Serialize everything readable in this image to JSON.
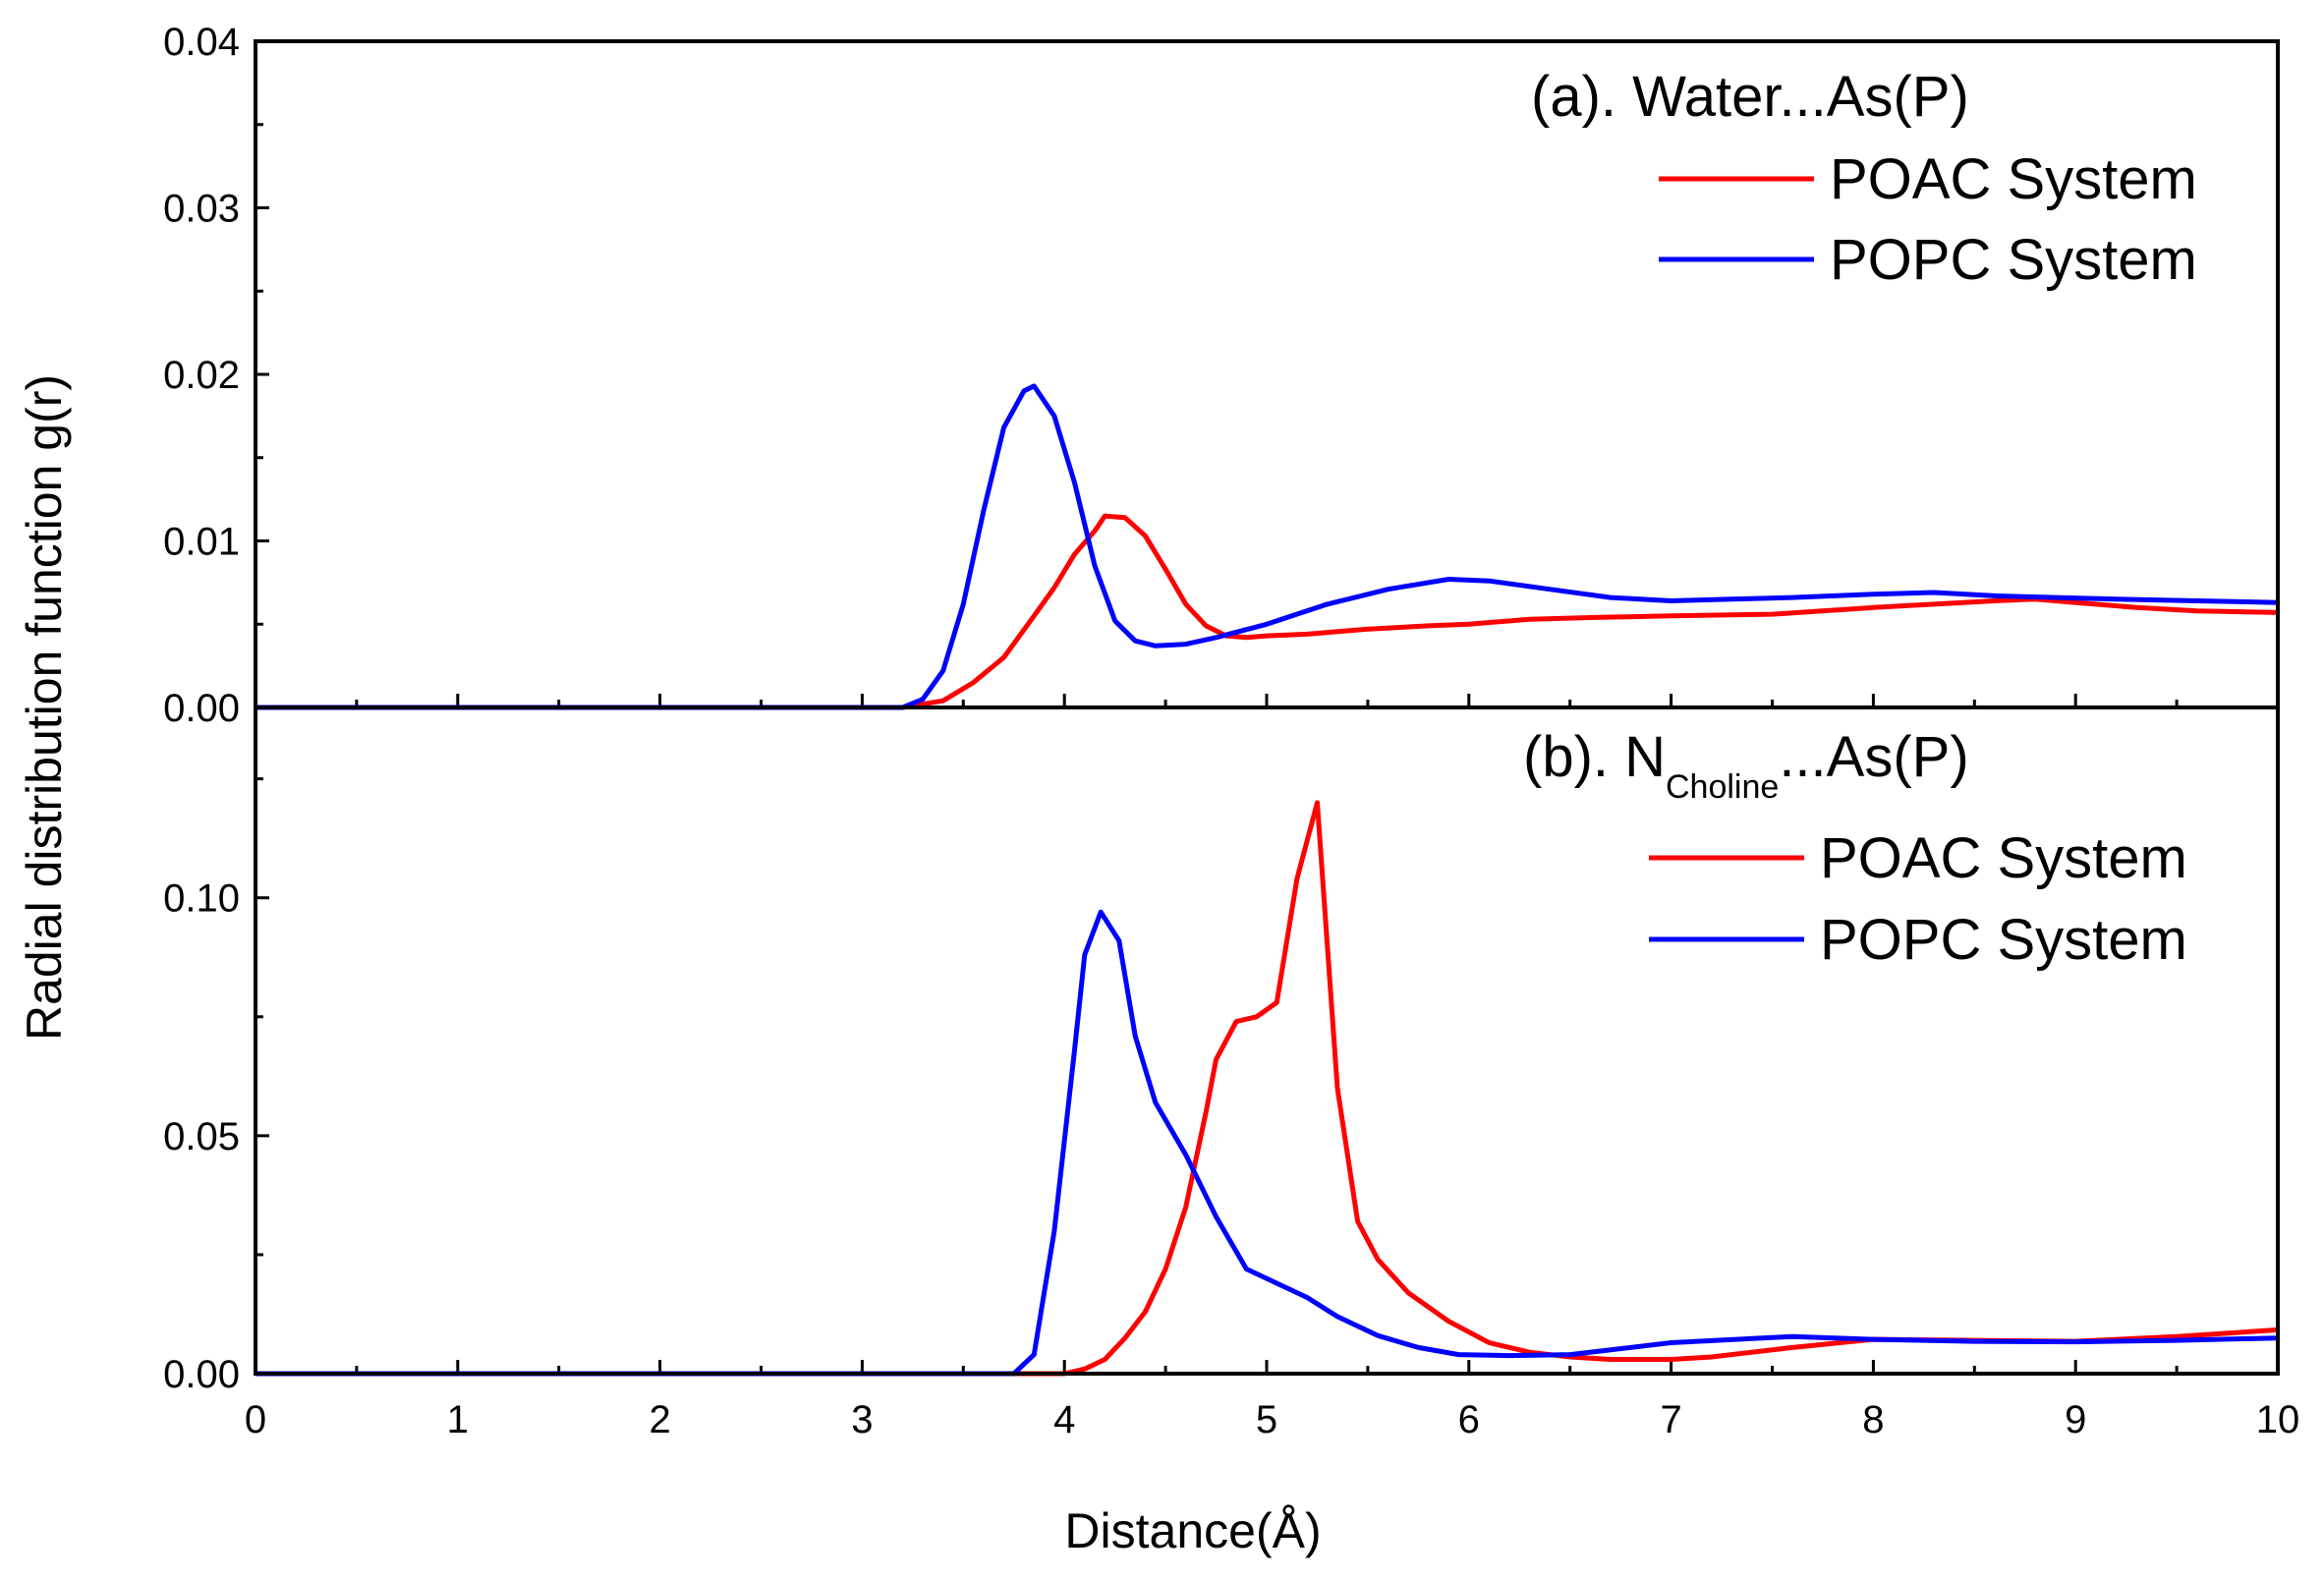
{
  "chart_data": [
    {
      "type": "line",
      "title": "(a). Water...As(P)",
      "xlim": [
        0,
        10
      ],
      "ylim": [
        0,
        0.04
      ],
      "yticks": [
        "0.00",
        "0.01",
        "0.02",
        "0.03",
        "0.04"
      ],
      "series": [
        {
          "name": "POAC System",
          "color": "#ff0000",
          "x": [
            0,
            3.2,
            3.4,
            3.55,
            3.7,
            3.85,
            3.95,
            4.05,
            4.15,
            4.2,
            4.3,
            4.4,
            4.5,
            4.6,
            4.7,
            4.8,
            4.9,
            5.0,
            5.2,
            5.5,
            5.8,
            6.0,
            6.3,
            6.6,
            7.0,
            7.5,
            8.0,
            8.3,
            8.6,
            8.8,
            9.0,
            9.3,
            9.6,
            10.0
          ],
          "y": [
            0,
            0,
            0.0004,
            0.0015,
            0.003,
            0.0055,
            0.0072,
            0.0092,
            0.0106,
            0.0115,
            0.0114,
            0.0103,
            0.0083,
            0.0062,
            0.0049,
            0.0043,
            0.0042,
            0.0043,
            0.0044,
            0.0047,
            0.0049,
            0.005,
            0.0053,
            0.0054,
            0.0055,
            0.0056,
            0.006,
            0.0062,
            0.0064,
            0.0065,
            0.0063,
            0.006,
            0.0058,
            0.0057
          ]
        },
        {
          "name": "POPC System",
          "color": "#0000ff",
          "x": [
            0,
            3.2,
            3.3,
            3.4,
            3.5,
            3.6,
            3.7,
            3.8,
            3.85,
            3.95,
            4.05,
            4.15,
            4.25,
            4.35,
            4.45,
            4.6,
            4.75,
            5.0,
            5.3,
            5.6,
            5.9,
            6.1,
            6.4,
            6.7,
            7.0,
            7.3,
            7.6,
            8.0,
            8.3,
            8.6,
            8.9,
            9.2,
            9.6,
            10.0
          ],
          "y": [
            0,
            0,
            0.0005,
            0.0022,
            0.0062,
            0.0118,
            0.0168,
            0.019,
            0.0193,
            0.0175,
            0.0135,
            0.0085,
            0.0052,
            0.004,
            0.0037,
            0.0038,
            0.0042,
            0.005,
            0.0062,
            0.0071,
            0.0077,
            0.0076,
            0.0071,
            0.0066,
            0.0064,
            0.0065,
            0.0066,
            0.0068,
            0.0069,
            0.0067,
            0.0066,
            0.0065,
            0.0064,
            0.0063
          ]
        }
      ]
    },
    {
      "type": "line",
      "title_main": "(b). N",
      "title_sub": "Choline",
      "title_tail": "...As(P)",
      "xlim": [
        0,
        10
      ],
      "ylim": [
        0,
        0.14
      ],
      "yticks": [
        "0.00",
        "0.05",
        "0.10"
      ],
      "xticks": [
        "0",
        "1",
        "2",
        "3",
        "4",
        "5",
        "6",
        "7",
        "8",
        "9",
        "10"
      ],
      "xlabel": "Distance(Å)",
      "series": [
        {
          "name": "POAC System",
          "color": "#ff0000",
          "x": [
            0,
            4.0,
            4.1,
            4.2,
            4.3,
            4.4,
            4.5,
            4.6,
            4.7,
            4.75,
            4.85,
            4.95,
            5.05,
            5.15,
            5.25,
            5.35,
            5.45,
            5.55,
            5.7,
            5.9,
            6.1,
            6.3,
            6.5,
            6.7,
            7.0,
            7.2,
            7.6,
            8.0,
            8.5,
            9.0,
            9.5,
            10.0
          ],
          "y": [
            0,
            0,
            0.001,
            0.003,
            0.0075,
            0.013,
            0.022,
            0.035,
            0.055,
            0.066,
            0.074,
            0.075,
            0.078,
            0.104,
            0.12,
            0.06,
            0.032,
            0.024,
            0.017,
            0.011,
            0.0065,
            0.0045,
            0.0035,
            0.003,
            0.003,
            0.0035,
            0.0055,
            0.0072,
            0.007,
            0.0068,
            0.0078,
            0.0092
          ]
        },
        {
          "name": "POPC System",
          "color": "#0000ff",
          "x": [
            0,
            3.75,
            3.85,
            3.95,
            4.05,
            4.1,
            4.18,
            4.27,
            4.35,
            4.45,
            4.6,
            4.75,
            4.9,
            5.05,
            5.2,
            5.35,
            5.55,
            5.75,
            5.95,
            6.2,
            6.5,
            7.0,
            7.6,
            8.0,
            8.5,
            9.0,
            9.5,
            10.0
          ],
          "y": [
            0,
            0,
            0.004,
            0.03,
            0.068,
            0.088,
            0.097,
            0.091,
            0.071,
            0.057,
            0.046,
            0.033,
            0.022,
            0.019,
            0.016,
            0.012,
            0.008,
            0.0055,
            0.004,
            0.0038,
            0.004,
            0.0065,
            0.0078,
            0.0072,
            0.0068,
            0.0067,
            0.007,
            0.0075
          ]
        }
      ]
    }
  ],
  "ylabel": "Radial distribution function g(r)"
}
